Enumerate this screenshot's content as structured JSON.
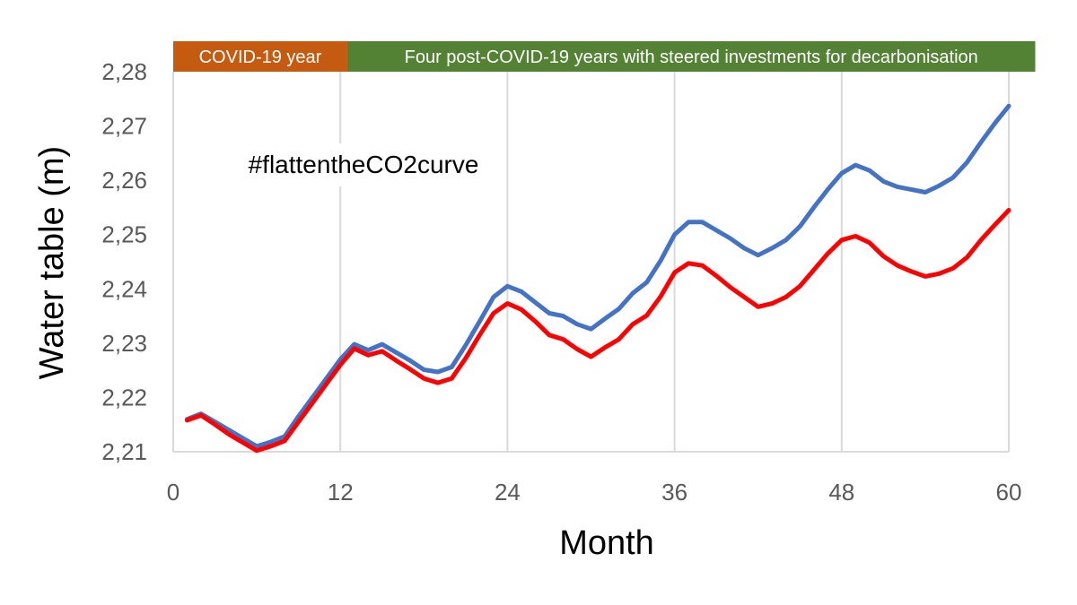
{
  "chart_data": {
    "type": "line",
    "xlabel": "Month",
    "ylabel": "Water table (m)",
    "xlim": [
      0,
      60
    ],
    "ylim": [
      2.21,
      2.28
    ],
    "x_ticks": [
      0,
      12,
      24,
      36,
      48,
      60
    ],
    "x_tick_labels": [
      "0",
      "12",
      "24",
      "36",
      "48",
      "60"
    ],
    "y_ticks": [
      2.21,
      2.22,
      2.23,
      2.24,
      2.25,
      2.26,
      2.27,
      2.28
    ],
    "y_tick_labels": [
      "2,21",
      "2,22",
      "2,23",
      "2,24",
      "2,25",
      "2,26",
      "2,27",
      "2,28"
    ],
    "grid": "vertical",
    "annotation": "#flattentheCO2curve",
    "periods": [
      {
        "label": "COVID-19 year",
        "x_start": 0,
        "x_end": 12.5,
        "color": "#c55a11"
      },
      {
        "label": "Four post-COVID-19 years with steered investments for decarbonisation",
        "x_start": 12.5,
        "x_end": 61.9,
        "color": "#548235"
      }
    ],
    "x": [
      1,
      2,
      3,
      4,
      5,
      6,
      7,
      8,
      9,
      10,
      11,
      12,
      13,
      14,
      15,
      16,
      17,
      18,
      19,
      20,
      21,
      22,
      23,
      24,
      25,
      26,
      27,
      28,
      29,
      30,
      31,
      32,
      33,
      34,
      35,
      36,
      37,
      38,
      39,
      40,
      41,
      42,
      43,
      44,
      45,
      46,
      47,
      48,
      49,
      50,
      51,
      52,
      53,
      54,
      55,
      56,
      57,
      58,
      59,
      60
    ],
    "series": [
      {
        "color": "#4472c4",
        "values": [
          2.216,
          2.217,
          2.2155,
          2.214,
          2.2125,
          2.211,
          2.2118,
          2.2128,
          2.2165,
          2.22,
          2.2235,
          2.227,
          2.2298,
          2.2287,
          2.2298,
          2.2283,
          2.2268,
          2.2251,
          2.2247,
          2.2256,
          2.2296,
          2.234,
          2.2385,
          2.2405,
          2.2395,
          2.2375,
          2.2355,
          2.235,
          2.2335,
          2.2326,
          2.2345,
          2.2363,
          2.2392,
          2.2412,
          2.2452,
          2.25,
          2.2523,
          2.2523,
          2.2508,
          2.2493,
          2.2475,
          2.2462,
          2.2475,
          2.249,
          2.2515,
          2.255,
          2.2583,
          2.2613,
          2.2628,
          2.2618,
          2.2598,
          2.2588,
          2.2583,
          2.2578,
          2.259,
          2.2605,
          2.2633,
          2.267,
          2.2705,
          2.2737
        ]
      },
      {
        "color": "#ff0000",
        "values": [
          2.2158,
          2.2167,
          2.215,
          2.2132,
          2.2117,
          2.2102,
          2.211,
          2.212,
          2.2155,
          2.219,
          2.2225,
          2.226,
          2.229,
          2.2278,
          2.2285,
          2.2268,
          2.2252,
          2.2235,
          2.2227,
          2.2235,
          2.2272,
          2.2315,
          2.2355,
          2.2373,
          2.2362,
          2.234,
          2.2315,
          2.2307,
          2.2289,
          2.2275,
          2.2292,
          2.2307,
          2.2335,
          2.2351,
          2.2386,
          2.243,
          2.2447,
          2.2443,
          2.2424,
          2.2403,
          2.2385,
          2.2367,
          2.2373,
          2.2385,
          2.2405,
          2.2435,
          2.2465,
          2.249,
          2.2497,
          2.2485,
          2.246,
          2.2443,
          2.2432,
          2.2423,
          2.2428,
          2.2438,
          2.2458,
          2.249,
          2.2518,
          2.2545
        ]
      }
    ]
  }
}
